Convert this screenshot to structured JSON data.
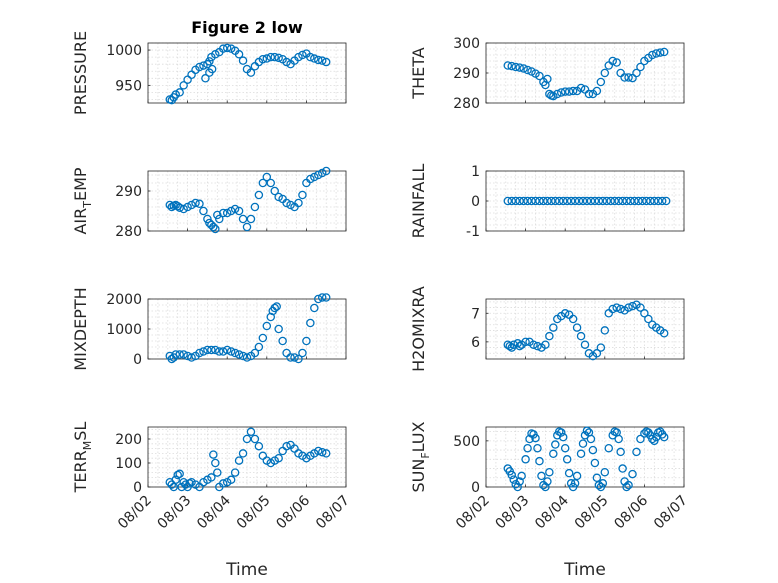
{
  "chart_data": [
    {
      "id": "pressure",
      "type": "scatter",
      "title": "Figure 2 low",
      "ylabel": "PRESSURE",
      "ylim": [
        925,
        1010
      ],
      "yticks": [
        950,
        1000
      ],
      "yticklabels": [
        "950",
        "1000"
      ],
      "xlim": [
        0,
        5
      ],
      "xticks": [
        0,
        1,
        2,
        3,
        4,
        5
      ],
      "x": [
        0.55,
        0.6,
        0.65,
        0.7,
        0.8,
        0.9,
        1.0,
        1.1,
        1.2,
        1.3,
        1.4,
        1.5,
        1.55,
        1.6,
        1.7,
        1.8,
        1.9,
        2.0,
        2.1,
        2.2,
        2.3,
        2.4,
        2.5,
        2.6,
        2.7,
        2.8,
        2.9,
        3.0,
        3.1,
        3.2,
        3.3,
        3.4,
        3.5,
        3.6,
        3.7,
        3.8,
        3.9,
        4.0,
        4.1,
        4.2,
        4.3,
        4.4,
        4.5,
        1.45,
        1.55,
        1.62
      ],
      "y": [
        930,
        929,
        933,
        937,
        940,
        950,
        958,
        965,
        972,
        976,
        978,
        980,
        984,
        990,
        994,
        997,
        1002,
        1003,
        1002,
        999,
        994,
        985,
        973,
        968,
        977,
        983,
        987,
        988,
        990,
        990,
        989,
        987,
        983,
        980,
        985,
        990,
        993,
        995,
        990,
        988,
        986,
        985,
        983,
        960,
        968,
        973
      ]
    },
    {
      "id": "theta",
      "type": "scatter",
      "title": "",
      "ylabel": "THETA",
      "ylim": [
        280,
        300
      ],
      "yticks": [
        280,
        290,
        300
      ],
      "yticklabels": [
        "280",
        "290",
        "300"
      ],
      "xlim": [
        0,
        5
      ],
      "xticks": [
        0,
        1,
        2,
        3,
        4,
        5
      ],
      "x": [
        0.55,
        0.65,
        0.75,
        0.85,
        0.95,
        1.05,
        1.15,
        1.25,
        1.35,
        1.45,
        1.5,
        1.55,
        1.6,
        1.65,
        1.7,
        1.8,
        1.9,
        2.0,
        2.1,
        2.2,
        2.3,
        2.4,
        2.5,
        2.6,
        2.7,
        2.8,
        2.9,
        3.0,
        3.1,
        3.2,
        3.3,
        3.4,
        3.5,
        3.6,
        3.7,
        3.8,
        3.9,
        4.0,
        4.1,
        4.2,
        4.3,
        4.4,
        4.5
      ],
      "y": [
        292.5,
        292.3,
        292,
        291.8,
        291.5,
        291,
        290.5,
        289.8,
        289,
        287,
        286,
        288,
        283,
        282.5,
        282.3,
        283,
        283.5,
        283.8,
        283.8,
        284,
        284,
        285,
        284.5,
        283,
        283,
        284,
        287,
        290,
        292.5,
        294,
        293.5,
        290,
        288.5,
        288.5,
        288.3,
        290,
        292,
        294,
        295,
        296,
        296.5,
        296.8,
        297
      ]
    },
    {
      "id": "air_temp",
      "type": "scatter",
      "title": "",
      "ylabel": "AIR_TEMP",
      "ylabel_parts": [
        "AIR",
        "T",
        "EMP"
      ],
      "ylim": [
        280,
        295
      ],
      "yticks": [
        280,
        290
      ],
      "yticklabels": [
        "280",
        "290"
      ],
      "xlim": [
        0,
        5
      ],
      "xticks": [
        0,
        1,
        2,
        3,
        4,
        5
      ],
      "x": [
        0.55,
        0.6,
        0.65,
        0.7,
        0.75,
        0.8,
        0.9,
        1.0,
        1.1,
        1.2,
        1.3,
        1.4,
        1.5,
        1.55,
        1.6,
        1.65,
        1.7,
        1.75,
        1.8,
        1.9,
        2.0,
        2.1,
        2.2,
        2.3,
        2.4,
        2.5,
        2.6,
        2.7,
        2.8,
        2.9,
        3.0,
        3.1,
        3.2,
        3.3,
        3.4,
        3.5,
        3.6,
        3.7,
        3.8,
        3.9,
        4.0,
        4.1,
        4.2,
        4.3,
        4.4,
        4.5
      ],
      "y": [
        286.5,
        286,
        286.3,
        286.5,
        286.2,
        285.8,
        285.5,
        286,
        286.5,
        287,
        286.8,
        285,
        283,
        282,
        281.5,
        281,
        280.5,
        284,
        283,
        284.5,
        284.5,
        285,
        285.5,
        285,
        283,
        281,
        283,
        286,
        289,
        292,
        293.5,
        292,
        290,
        288.5,
        288,
        287,
        286.5,
        286,
        287,
        289,
        292,
        293,
        293.5,
        294,
        294.5,
        295
      ]
    },
    {
      "id": "rainfall",
      "type": "scatter",
      "title": "",
      "ylabel": "RAINFALL",
      "ylim": [
        -1,
        1
      ],
      "yticks": [
        -1,
        0,
        1
      ],
      "yticklabels": [
        "-1",
        "0",
        "1"
      ],
      "xlim": [
        0,
        5
      ],
      "xticks": [
        0,
        1,
        2,
        3,
        4,
        5
      ],
      "x": [
        0.55,
        0.65,
        0.75,
        0.85,
        0.95,
        1.05,
        1.15,
        1.25,
        1.35,
        1.45,
        1.55,
        1.65,
        1.75,
        1.85,
        1.95,
        2.05,
        2.15,
        2.25,
        2.35,
        2.45,
        2.55,
        2.65,
        2.75,
        2.85,
        2.95,
        3.05,
        3.15,
        3.25,
        3.35,
        3.45,
        3.55,
        3.65,
        3.75,
        3.85,
        3.95,
        4.05,
        4.15,
        4.25,
        4.35,
        4.45,
        4.55
      ],
      "y": [
        0,
        0,
        0,
        0,
        0,
        0,
        0,
        0,
        0,
        0,
        0,
        0,
        0,
        0,
        0,
        0,
        0,
        0,
        0,
        0,
        0,
        0,
        0,
        0,
        0,
        0,
        0,
        0,
        0,
        0,
        0,
        0,
        0,
        0,
        0,
        0,
        0,
        0,
        0,
        0,
        0
      ]
    },
    {
      "id": "mixdepth",
      "type": "scatter",
      "title": "",
      "ylabel": "MIXDEPTH",
      "ylim": [
        0,
        2000
      ],
      "yticks": [
        0,
        1000,
        2000
      ],
      "yticklabels": [
        "0",
        "1000",
        "2000"
      ],
      "xlim": [
        0,
        5
      ],
      "xticks": [
        0,
        1,
        2,
        3,
        4,
        5
      ],
      "x": [
        0.55,
        0.6,
        0.65,
        0.7,
        0.8,
        0.9,
        1.0,
        1.1,
        1.2,
        1.3,
        1.4,
        1.5,
        1.6,
        1.7,
        1.8,
        1.9,
        2.0,
        2.1,
        2.2,
        2.3,
        2.4,
        2.5,
        2.6,
        2.7,
        2.8,
        2.9,
        3.0,
        3.1,
        3.15,
        3.2,
        3.25,
        3.3,
        3.4,
        3.5,
        3.6,
        3.7,
        3.8,
        3.9,
        4.0,
        4.1,
        4.2,
        4.3,
        4.4,
        4.5
      ],
      "y": [
        100,
        0,
        50,
        150,
        150,
        150,
        100,
        50,
        100,
        200,
        250,
        300,
        300,
        300,
        250,
        250,
        300,
        250,
        200,
        150,
        100,
        50,
        100,
        200,
        400,
        700,
        1100,
        1400,
        1600,
        1700,
        1750,
        1000,
        600,
        200,
        50,
        50,
        0,
        200,
        600,
        1200,
        1700,
        2000,
        2050,
        2050
      ]
    },
    {
      "id": "h2omixra",
      "type": "scatter",
      "title": "",
      "ylabel": "H2OMIXRA",
      "ylim": [
        5.4,
        7.5
      ],
      "yticks": [
        6,
        7
      ],
      "yticklabels": [
        "6",
        "7"
      ],
      "xlim": [
        0,
        5
      ],
      "xticks": [
        0,
        1,
        2,
        3,
        4,
        5
      ],
      "x": [
        0.55,
        0.6,
        0.65,
        0.7,
        0.8,
        0.85,
        0.9,
        1.0,
        1.1,
        1.2,
        1.3,
        1.4,
        1.5,
        1.6,
        1.7,
        1.8,
        1.9,
        2.0,
        2.1,
        2.2,
        2.3,
        2.4,
        2.5,
        2.6,
        2.7,
        2.8,
        2.9,
        3.0,
        3.1,
        3.2,
        3.3,
        3.4,
        3.5,
        3.6,
        3.7,
        3.8,
        3.9,
        4.0,
        4.1,
        4.2,
        4.3,
        4.4,
        4.5
      ],
      "y": [
        5.9,
        5.85,
        5.8,
        5.9,
        5.95,
        5.85,
        5.9,
        6.0,
        6.0,
        5.9,
        5.85,
        5.8,
        5.9,
        6.2,
        6.5,
        6.8,
        6.9,
        7.0,
        6.95,
        6.8,
        6.5,
        6.2,
        5.9,
        5.6,
        5.5,
        5.6,
        5.8,
        6.4,
        7.0,
        7.15,
        7.2,
        7.15,
        7.1,
        7.2,
        7.25,
        7.3,
        7.2,
        7.0,
        6.8,
        6.6,
        6.5,
        6.4,
        6.3
      ]
    },
    {
      "id": "terr_msl",
      "type": "scatter",
      "title": "",
      "ylabel": "TERR_MSL",
      "ylabel_parts": [
        "TERR",
        "M",
        "SL"
      ],
      "ylim": [
        0,
        250
      ],
      "yticks": [
        0,
        100,
        200
      ],
      "yticklabels": [
        "0",
        "100",
        "200"
      ],
      "xlim": [
        0,
        5
      ],
      "xticks": [
        0,
        1,
        2,
        3,
        4,
        5
      ],
      "xticklabels": [
        "08/02",
        "08/03",
        "08/04",
        "08/05",
        "08/06",
        "08/07"
      ],
      "xlabel": "Time",
      "x": [
        0.55,
        0.6,
        0.65,
        0.7,
        0.75,
        0.8,
        0.85,
        0.9,
        0.95,
        1.0,
        1.05,
        1.1,
        1.2,
        1.3,
        1.4,
        1.5,
        1.6,
        1.65,
        1.7,
        1.75,
        1.8,
        1.9,
        2.0,
        2.1,
        2.2,
        2.3,
        2.4,
        2.5,
        2.6,
        2.7,
        2.8,
        2.9,
        3.0,
        3.1,
        3.2,
        3.3,
        3.4,
        3.5,
        3.6,
        3.7,
        3.8,
        3.9,
        4.0,
        4.1,
        4.2,
        4.3,
        4.4,
        4.5
      ],
      "y": [
        20,
        10,
        0,
        30,
        50,
        55,
        0,
        20,
        10,
        0,
        15,
        20,
        10,
        0,
        20,
        30,
        40,
        135,
        100,
        60,
        0,
        15,
        20,
        30,
        60,
        110,
        140,
        200,
        230,
        200,
        170,
        130,
        110,
        100,
        110,
        120,
        150,
        170,
        175,
        160,
        140,
        130,
        120,
        130,
        140,
        150,
        145,
        140
      ]
    },
    {
      "id": "sun_flux",
      "type": "scatter",
      "title": "",
      "ylabel": "SUN_FLUX",
      "ylabel_parts": [
        "SUN",
        "F",
        "LUX"
      ],
      "ylim": [
        0,
        650
      ],
      "yticks": [
        0,
        500
      ],
      "yticklabels": [
        "0",
        "500"
      ],
      "xlim": [
        0,
        5
      ],
      "xticks": [
        0,
        1,
        2,
        3,
        4,
        5
      ],
      "xticklabels": [
        "08/02",
        "08/03",
        "08/04",
        "08/05",
        "08/06",
        "08/07"
      ],
      "xlabel": "Time",
      "x": [
        0.55,
        0.6,
        0.65,
        0.7,
        0.75,
        0.8,
        0.85,
        0.9,
        1.0,
        1.05,
        1.1,
        1.15,
        1.2,
        1.25,
        1.3,
        1.35,
        1.4,
        1.45,
        1.5,
        1.55,
        1.6,
        1.7,
        1.75,
        1.8,
        1.85,
        1.9,
        1.95,
        2.0,
        2.05,
        2.1,
        2.15,
        2.2,
        2.25,
        2.3,
        2.4,
        2.45,
        2.5,
        2.55,
        2.6,
        2.65,
        2.7,
        2.75,
        2.8,
        2.85,
        2.9,
        2.95,
        3.0,
        3.1,
        3.2,
        3.25,
        3.3,
        3.35,
        3.4,
        3.45,
        3.5,
        3.55,
        3.6,
        3.7,
        3.8,
        3.9,
        4.0,
        4.05,
        4.1,
        4.15,
        4.2,
        4.25,
        4.3,
        4.35,
        4.4,
        4.45,
        4.5
      ],
      "y": [
        200,
        170,
        130,
        80,
        30,
        0,
        60,
        120,
        300,
        420,
        520,
        580,
        570,
        530,
        420,
        280,
        120,
        20,
        0,
        60,
        160,
        360,
        460,
        560,
        600,
        590,
        540,
        420,
        300,
        150,
        40,
        0,
        40,
        120,
        360,
        470,
        560,
        610,
        590,
        520,
        400,
        260,
        100,
        20,
        0,
        40,
        160,
        420,
        560,
        600,
        590,
        520,
        380,
        200,
        60,
        0,
        20,
        140,
        380,
        520,
        580,
        600,
        590,
        560,
        520,
        500,
        540,
        590,
        600,
        570,
        540
      ]
    }
  ]
}
